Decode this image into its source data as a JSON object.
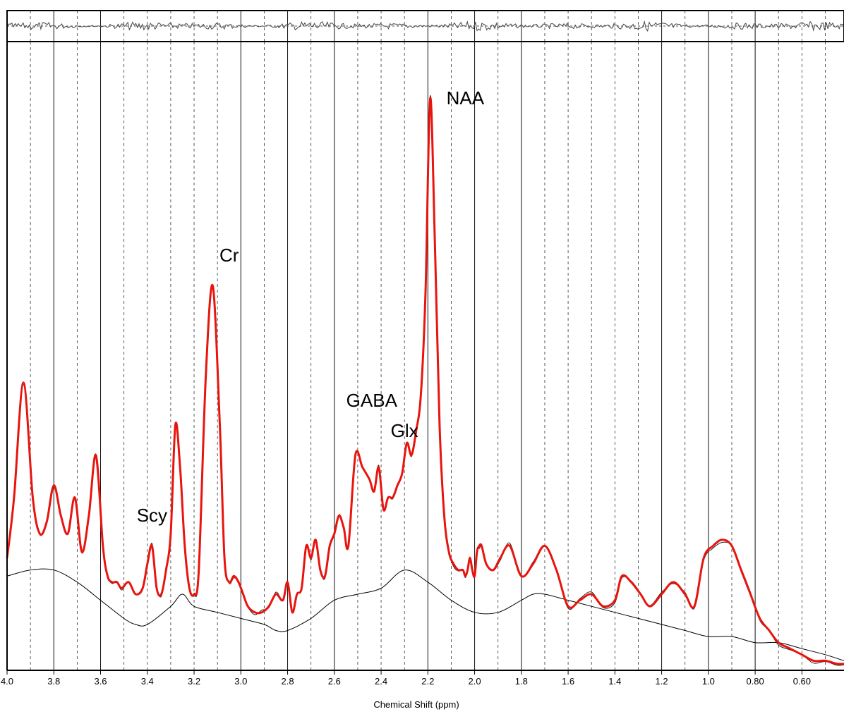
{
  "chart_data": {
    "type": "line",
    "xlabel": "Chemical Shift (ppm)",
    "x_reversed": true,
    "xlim": [
      4.0,
      0.42
    ],
    "ylim": [
      0,
      100
    ],
    "x_tick_labels": [
      "4.0",
      "3.8",
      "3.6",
      "3.4",
      "3.2",
      "3.0",
      "2.8",
      "2.6",
      "2.4",
      "2.2",
      "2.0",
      "1.8",
      "1.6",
      "1.4",
      "1.2",
      "1.0",
      "0.80",
      "0.60"
    ],
    "x_tick_values": [
      4.0,
      3.8,
      3.6,
      3.4,
      3.2,
      3.0,
      2.8,
      2.6,
      2.4,
      2.2,
      2.0,
      1.8,
      1.6,
      1.4,
      1.2,
      1.0,
      0.8,
      0.6
    ],
    "solid_gridlines": [
      3.8,
      3.6,
      3.0,
      2.8,
      2.6,
      2.2,
      2.0,
      1.8,
      1.2,
      1.0,
      0.8
    ],
    "dashed_gridlines": [
      3.9,
      3.7,
      3.5,
      3.4,
      3.3,
      3.2,
      3.1,
      2.9,
      2.7,
      2.5,
      2.4,
      2.3,
      2.1,
      1.9,
      1.7,
      1.6,
      1.5,
      1.4,
      1.3,
      1.1,
      0.9,
      0.7,
      0.6,
      0.5
    ],
    "grid": true,
    "annotations": [
      {
        "text": "NAA",
        "x": 2.04,
        "y": 93
      },
      {
        "text": "Cr",
        "x": 3.05,
        "y": 67
      },
      {
        "text": "GABA",
        "x": 2.44,
        "y": 43
      },
      {
        "text": "Glx",
        "x": 2.3,
        "y": 38
      },
      {
        "text": "Scy",
        "x": 3.38,
        "y": 24
      }
    ],
    "series": [
      {
        "color": "#e8140e",
        "x": [
          4.0,
          3.97,
          3.93,
          3.89,
          3.86,
          3.83,
          3.8,
          3.77,
          3.74,
          3.71,
          3.68,
          3.65,
          3.62,
          3.59,
          3.57,
          3.55,
          3.53,
          3.51,
          3.48,
          3.45,
          3.42,
          3.4,
          3.38,
          3.36,
          3.34,
          3.32,
          3.3,
          3.28,
          3.26,
          3.24,
          3.22,
          3.2,
          3.18,
          3.15,
          3.12,
          3.09,
          3.07,
          3.05,
          3.03,
          3.01,
          2.99,
          2.97,
          2.94,
          2.91,
          2.88,
          2.85,
          2.82,
          2.8,
          2.78,
          2.76,
          2.74,
          2.72,
          2.7,
          2.68,
          2.66,
          2.64,
          2.62,
          2.6,
          2.58,
          2.56,
          2.54,
          2.51,
          2.48,
          2.45,
          2.43,
          2.41,
          2.39,
          2.37,
          2.35,
          2.33,
          2.31,
          2.29,
          2.27,
          2.25,
          2.23,
          2.21,
          2.19,
          2.17,
          2.15,
          2.13,
          2.11,
          2.09,
          2.07,
          2.05,
          2.04,
          2.03,
          2.02,
          2.01,
          2.0,
          1.99,
          1.98,
          1.97,
          1.95,
          1.92,
          1.89,
          1.85,
          1.8,
          1.75,
          1.7,
          1.65,
          1.6,
          1.55,
          1.5,
          1.45,
          1.4,
          1.37,
          1.33,
          1.29,
          1.25,
          1.2,
          1.15,
          1.1,
          1.06,
          1.02,
          0.98,
          0.94,
          0.9,
          0.86,
          0.82,
          0.78,
          0.74,
          0.7,
          0.65,
          0.6,
          0.55,
          0.5,
          0.45,
          0.42
        ],
        "y": [
          18,
          28,
          47,
          28,
          22,
          24,
          30,
          25,
          22,
          28,
          19,
          25,
          35,
          20,
          15,
          14,
          14,
          13,
          14,
          12,
          13,
          17,
          20,
          13,
          12,
          16,
          22,
          40,
          33,
          20,
          13,
          12,
          16,
          48,
          63,
          40,
          18,
          14,
          15,
          14,
          12,
          10,
          9,
          9,
          10,
          12,
          11,
          14,
          9,
          12,
          13,
          20,
          18,
          21,
          16,
          15,
          20,
          22,
          25,
          23,
          20,
          35,
          33,
          31,
          29,
          33,
          26,
          28,
          28,
          30,
          32,
          37,
          35,
          39,
          45,
          62,
          94,
          70,
          40,
          25,
          19,
          17,
          16,
          16,
          15,
          16,
          18,
          16,
          15,
          19,
          20,
          20,
          17,
          16,
          18,
          20,
          15,
          17,
          20,
          16,
          10,
          11,
          12,
          10,
          11,
          15,
          14,
          12,
          10,
          12,
          14,
          12,
          10,
          18,
          20,
          21,
          20,
          16,
          12,
          8,
          6,
          4,
          3,
          2,
          1,
          1,
          0.5,
          0.5
        ]
      },
      {
        "color": "#000000",
        "x": [
          4.0,
          3.9,
          3.8,
          3.7,
          3.6,
          3.5,
          3.45,
          3.4,
          3.3,
          3.25,
          3.2,
          3.1,
          3.0,
          2.9,
          2.85,
          2.8,
          2.7,
          2.6,
          2.5,
          2.4,
          2.3,
          2.2,
          2.1,
          2.0,
          1.9,
          1.8,
          1.75,
          1.7,
          1.6,
          1.5,
          1.4,
          1.3,
          1.2,
          1.1,
          1.0,
          0.9,
          0.8,
          0.7,
          0.6,
          0.5,
          0.42
        ],
        "y": [
          15,
          16,
          16,
          14,
          11,
          8,
          7,
          7,
          10,
          12,
          10,
          9,
          8,
          7,
          6,
          6,
          8,
          11,
          12,
          13,
          16,
          14,
          11,
          9,
          9,
          11,
          12,
          12,
          11,
          10,
          9,
          8,
          7,
          6,
          5,
          5,
          4,
          4,
          3,
          2,
          1
        ]
      }
    ]
  }
}
